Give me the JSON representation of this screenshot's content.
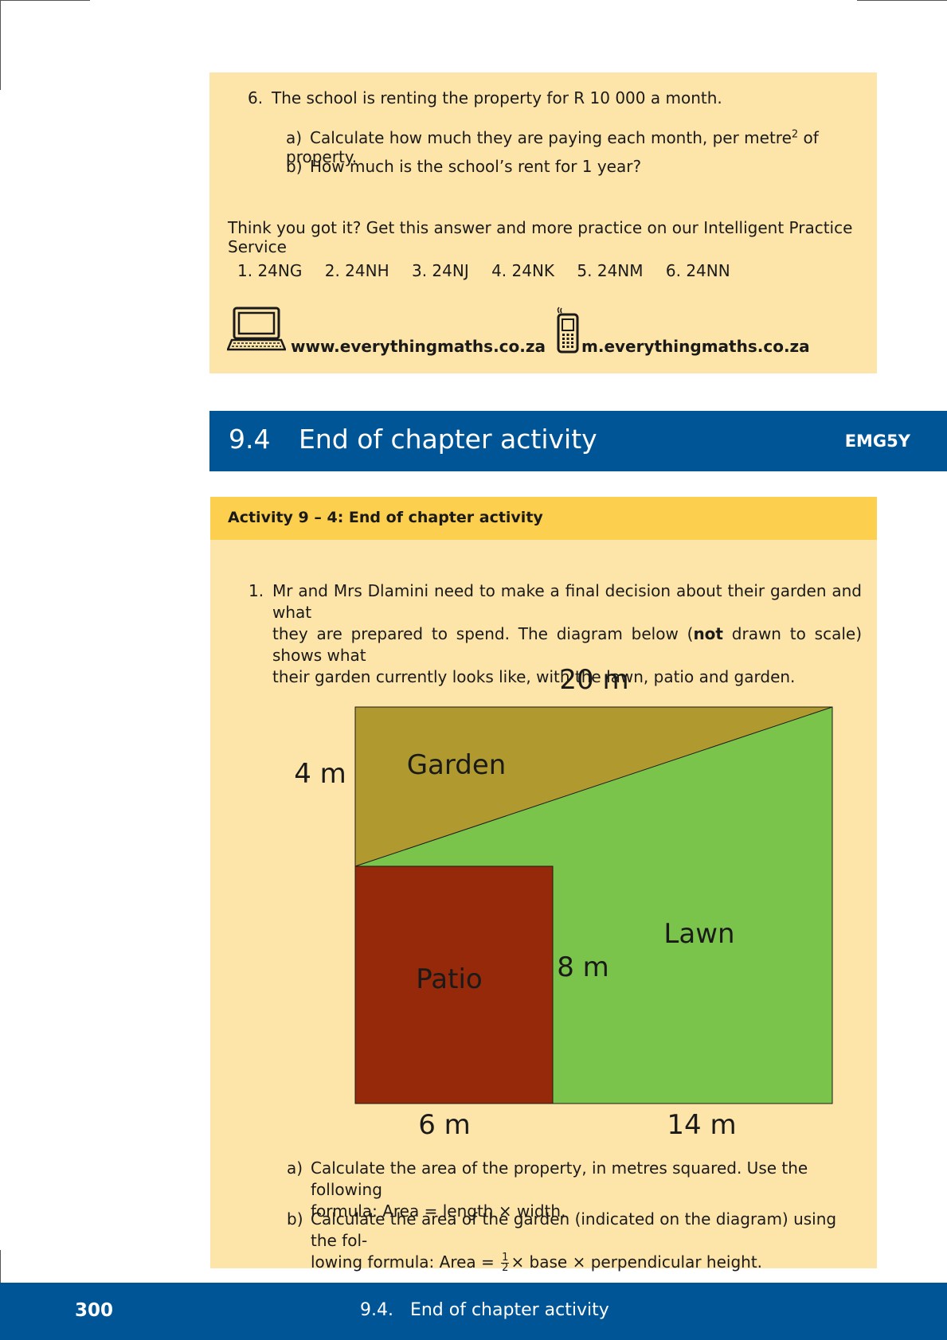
{
  "top_box": {
    "q6": {
      "number": "6.",
      "text": "The school is renting the property for R 10 000 a month.",
      "a": {
        "label": "a)",
        "text_before": "Calculate how much they are paying each month, per metre",
        "sup": "2",
        "text_after": " of property."
      },
      "b": {
        "label": "b)",
        "text": "How much is the school’s rent for 1 year?"
      }
    },
    "practice_prompt": "Think you got it? Get this answer and more practice on our Intelligent Practice Service",
    "codes": [
      "1. 24NG",
      "2. 24NH",
      "3. 24NJ",
      "4. 24NK",
      "5. 24NM",
      "6. 24NN"
    ],
    "web_url": "www.everythingmaths.co.za",
    "mobile_url": "m.everythingmaths.co.za",
    "icons": [
      "laptop-icon",
      "mobile-phone-icon"
    ]
  },
  "section": {
    "number": "9.4",
    "title": "End of chapter activity",
    "code": "EMG5Y",
    "color": "#005596"
  },
  "activity": {
    "header": "Activity 9 – 4: End of chapter activity",
    "q1": {
      "number": "1.",
      "line1": "Mr and Mrs Dlamini need to make a final decision about their garden and what",
      "line2_before": "they are prepared to spend. The diagram below (",
      "line2_bold": "not",
      "line2_after": " drawn to scale) shows what",
      "line3": "their garden currently looks like, with the lawn, patio and garden."
    },
    "diagram": {
      "labels": {
        "top_width": "20 m",
        "left_height": "4 m",
        "garden": "Garden",
        "lawn": "Lawn",
        "patio": "Patio",
        "patio_height": "8 m",
        "bottom_left": "6 m",
        "bottom_right": "14 m"
      },
      "colors": {
        "garden": "#b09a30",
        "lawn": "#7ac44c",
        "patio": "#952909"
      }
    },
    "a": {
      "label": "a)",
      "line1": "Calculate the area of the property, in metres squared.  Use the following",
      "line2": "formula: Area = length × width."
    },
    "b": {
      "label": "b)",
      "line1": "Calculate the area of the garden (indicated on the diagram) using the fol-",
      "line2_before": "lowing formula: Area = ",
      "frac_num": "1",
      "frac_den": "2",
      "line2_after": "× base × perpendicular height."
    }
  },
  "footer": {
    "page_number": "300",
    "title": "9.4.   End of chapter activity"
  }
}
